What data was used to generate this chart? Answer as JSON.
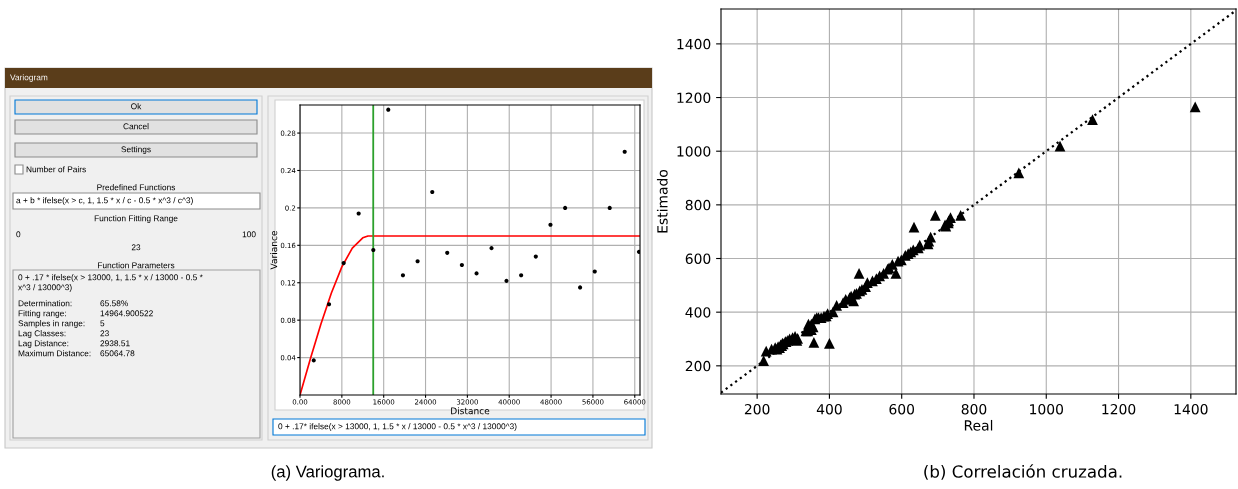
{
  "chart_data": [
    {
      "type": "scatter",
      "xlabel": "Distance",
      "ylabel": "Variance",
      "series": [
        {
          "color": "#000000",
          "marker": "circle",
          "x": [
            2628,
            5547,
            8350,
            11212,
            14015,
            16876,
            19679,
            22482,
            25285,
            28146,
            30949,
            33752,
            36613,
            39474,
            42277,
            45080,
            47883,
            50686,
            53547,
            56350,
            59211,
            62073,
            64800
          ],
          "values": [
            0.037,
            0.097,
            0.141,
            0.194,
            0.155,
            0.305,
            0.128,
            0.143,
            0.217,
            0.152,
            0.139,
            0.13,
            0.157,
            0.122,
            0.128,
            0.148,
            0.182,
            0.2,
            0.115,
            0.132,
            0.2,
            0.26,
            0.153
          ]
        },
        {
          "type": "line",
          "color": "#ff0000",
          "x": [
            0,
            2000,
            4000,
            6000,
            8000,
            10000,
            12000,
            13000,
            65000
          ],
          "values": [
            0,
            0.039,
            0.076,
            0.109,
            0.137,
            0.157,
            0.168,
            0.17,
            0.17
          ]
        }
      ],
      "xlim": [
        0,
        65000
      ],
      "ylim": [
        0,
        0.31
      ],
      "xticks": [
        {
          "value": 0,
          "label": "0.00"
        },
        8000,
        16000,
        24000,
        32000,
        40000,
        48000,
        56000,
        64000
      ],
      "yticks": [
        0.04,
        0.08,
        0.12,
        0.16,
        0.2,
        0.24,
        0.28
      ],
      "ref_lines": [
        {
          "axis": "x",
          "value": 14000,
          "color": "#2ca02c"
        }
      ],
      "grid": true,
      "annotations": [
        "Variogram",
        "Ok",
        "Cancel",
        "Settings",
        "Number of Pairs",
        "Predefined Functions",
        "a + b * ifelse(x > c, 1, 1.5 * x / c - 0.5 * x^3 / c^3)",
        "Function Fitting Range",
        "0",
        "100",
        "23",
        "Function Parameters",
        "0 + .17 * ifelse(x > 13000, 1, 1.5 * x / 13000 - 0.5 *",
        "x^3 / 13000^3)",
        "Determination:",
        "65.58%",
        "Fitting range:",
        "14964.900522",
        "Samples in range:",
        "5",
        "Lag Classes:",
        "23",
        "Lag Distance:",
        "2938.51",
        "Maximum Distance:",
        "65064.78",
        "0 + .17* ifelse(x > 13000, 1, 1.5 * x / 13000 - 0.5 * x^3 / 13000^3)",
        "(a) Variograma."
      ]
    },
    {
      "type": "scatter",
      "xlabel": "Real",
      "ylabel": "Estimado",
      "series": [
        {
          "color": "#000000",
          "marker": "triangle",
          "x": [
            218,
            225,
            240,
            250,
            255,
            258,
            262,
            265,
            268,
            270,
            272,
            278,
            280,
            285,
            290,
            298,
            305,
            310,
            312,
            335,
            340,
            342,
            350,
            350,
            355,
            357,
            360,
            365,
            370,
            377,
            385,
            391,
            395,
            400,
            410,
            420,
            438,
            445,
            456,
            460,
            467,
            470,
            475,
            482,
            484,
            490,
            500,
            505,
            519,
            530,
            539,
            550,
            561,
            565,
            574,
            584,
            590,
            599,
            610,
            618,
            625,
            632,
            634,
            646,
            650,
            673,
            675,
            680,
            693,
            720,
            722,
            729,
            730,
            735,
            763,
            924,
            1038,
            1128,
            1412
          ],
          "values": [
            219,
            255,
            262,
            268,
            262,
            272,
            268,
            278,
            275,
            285,
            282,
            290,
            290,
            295,
            300,
            305,
            310,
            295,
            302,
            330,
            330,
            355,
            335,
            355,
            345,
            287,
            375,
            380,
            380,
            380,
            385,
            386,
            395,
            284,
            401,
            425,
            436,
            448,
            454,
            460,
            442,
            467,
            470,
            545,
            479,
            485,
            495,
            510,
            517,
            525,
            535,
            545,
            560,
            565,
            578,
            545,
            590,
            595,
            612,
            618,
            625,
            632,
            717,
            640,
            650,
            655,
            665,
            680,
            761,
            725,
            721,
            733,
            740,
            752,
            761,
            919,
            1019,
            1118,
            1165
          ]
        },
        {
          "type": "line",
          "color": "#000000",
          "line_style": "dotted",
          "x": [
            100,
            1525
          ],
          "values": [
            100,
            1525
          ]
        }
      ],
      "xlim": [
        100,
        1525
      ],
      "ylim": [
        95,
        1530
      ],
      "xticks": [
        200,
        400,
        600,
        800,
        1000,
        1200,
        1400
      ],
      "yticks": [
        200,
        400,
        600,
        800,
        1000,
        1200,
        1400
      ],
      "grid": true,
      "annotations": [
        "(b) Correlación cruzada."
      ]
    }
  ]
}
